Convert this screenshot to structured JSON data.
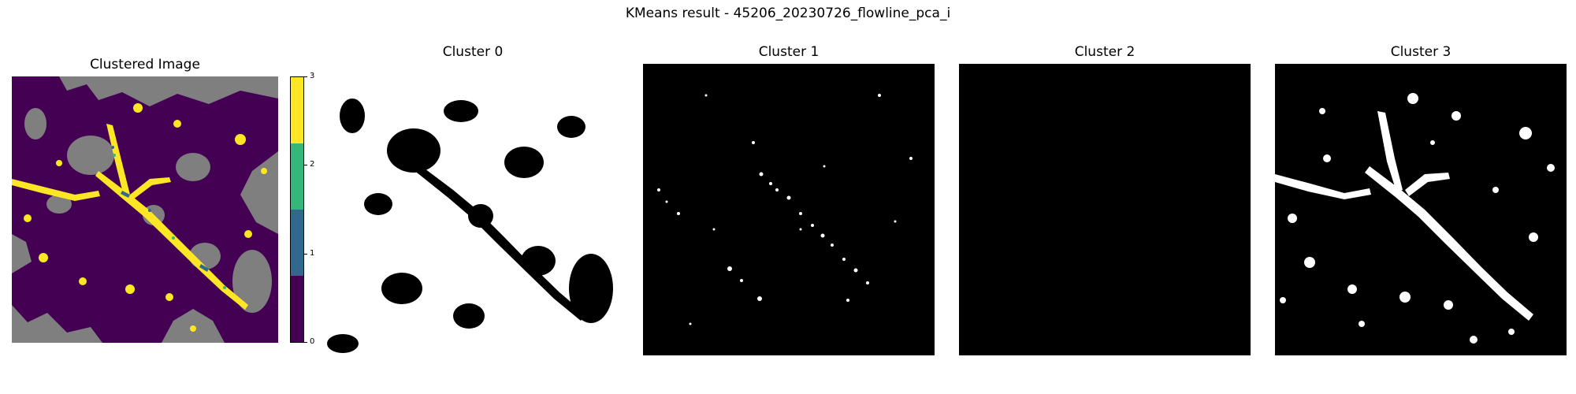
{
  "figure": {
    "title": "KMeans result - 45206_20230726_flowline_pca_i"
  },
  "panels": [
    {
      "title": "Clustered Image"
    },
    {
      "title": "Cluster 0"
    },
    {
      "title": "Cluster 1"
    },
    {
      "title": "Cluster 2"
    },
    {
      "title": "Cluster 3"
    }
  ],
  "colorbar": {
    "ticks": [
      "0",
      "1",
      "2",
      "3"
    ],
    "colors": [
      "#440154",
      "#31688e",
      "#35b779",
      "#fde725"
    ]
  },
  "palette": {
    "background": "#7f7f7f",
    "cluster_0": "#440154",
    "cluster_3": "#fde725",
    "mask_on": "#ffffff",
    "mask_off": "#000000"
  }
}
